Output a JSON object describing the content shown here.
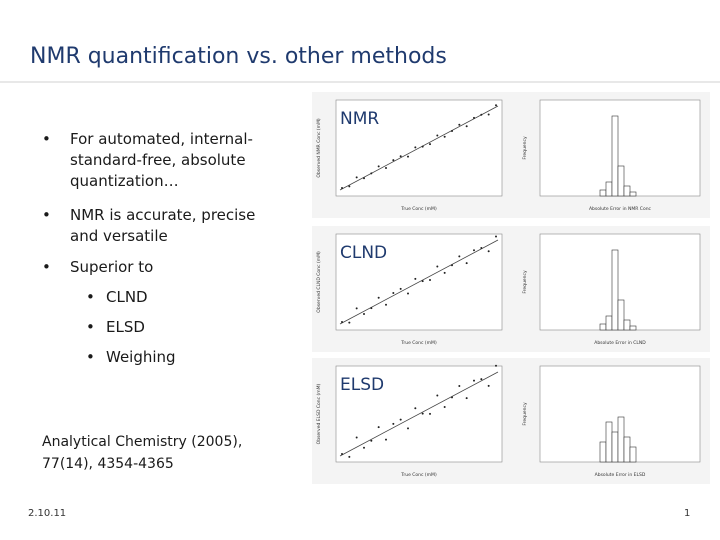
{
  "slide": {
    "title": "NMR quantification vs. other methods",
    "bullets": [
      {
        "lines": [
          "For automated, internal-",
          "standard-free, absolute",
          "quantization…"
        ]
      },
      {
        "lines": [
          "NMR is accurate, precise",
          "and versatile"
        ]
      },
      {
        "lines": [
          "Superior to"
        ]
      }
    ],
    "sub_bullets": [
      "CLND",
      "ELSD",
      "Weighing"
    ],
    "citation": [
      "Analytical Chemistry  (2005),",
      "77(14),  4354-4365"
    ],
    "date": "2.10.11",
    "page": "1"
  },
  "figures": [
    {
      "label": "NMR",
      "x_axis": "True Conc (mM)",
      "y_axis": "Observed NMR Conc (mM)",
      "hist_x_axis": "Absolute Error in NMR Conc",
      "hist_y_axis": "Frequency"
    },
    {
      "label": "CLND",
      "x_axis": "True Conc (mM)",
      "y_axis": "Observed CLND Conc (mM)",
      "hist_x_axis": "Absolute Error in CLND",
      "hist_y_axis": "Frequency"
    },
    {
      "label": "ELSD",
      "x_axis": "True Conc (mM)",
      "y_axis": "Observed ELSD Conc (mM)",
      "hist_x_axis": "Absolute Error in ELSD",
      "hist_y_axis": "Frequency"
    }
  ]
}
